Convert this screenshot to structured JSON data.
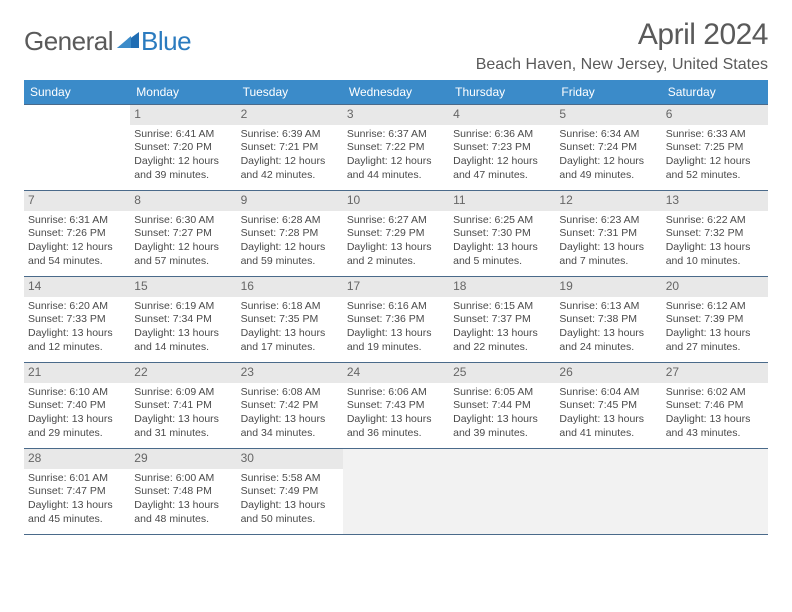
{
  "logo": {
    "text1": "General",
    "text2": "Blue"
  },
  "title": "April 2024",
  "location": "Beach Haven, New Jersey, United States",
  "colors": {
    "header_bg": "#3b8bc9",
    "header_text": "#ffffff",
    "daynum_bg": "#e8e8e8",
    "border": "#4a6a8a",
    "logo_gray": "#5a5a5a",
    "logo_blue": "#2b7bbf",
    "text": "#4a4a4a"
  },
  "weekdays": [
    "Sunday",
    "Monday",
    "Tuesday",
    "Wednesday",
    "Thursday",
    "Friday",
    "Saturday"
  ],
  "weeks": [
    [
      {
        "blank": true
      },
      {
        "day": "1",
        "sunrise": "6:41 AM",
        "sunset": "7:20 PM",
        "daylight": "12 hours and 39 minutes."
      },
      {
        "day": "2",
        "sunrise": "6:39 AM",
        "sunset": "7:21 PM",
        "daylight": "12 hours and 42 minutes."
      },
      {
        "day": "3",
        "sunrise": "6:37 AM",
        "sunset": "7:22 PM",
        "daylight": "12 hours and 44 minutes."
      },
      {
        "day": "4",
        "sunrise": "6:36 AM",
        "sunset": "7:23 PM",
        "daylight": "12 hours and 47 minutes."
      },
      {
        "day": "5",
        "sunrise": "6:34 AM",
        "sunset": "7:24 PM",
        "daylight": "12 hours and 49 minutes."
      },
      {
        "day": "6",
        "sunrise": "6:33 AM",
        "sunset": "7:25 PM",
        "daylight": "12 hours and 52 minutes."
      }
    ],
    [
      {
        "day": "7",
        "sunrise": "6:31 AM",
        "sunset": "7:26 PM",
        "daylight": "12 hours and 54 minutes."
      },
      {
        "day": "8",
        "sunrise": "6:30 AM",
        "sunset": "7:27 PM",
        "daylight": "12 hours and 57 minutes."
      },
      {
        "day": "9",
        "sunrise": "6:28 AM",
        "sunset": "7:28 PM",
        "daylight": "12 hours and 59 minutes."
      },
      {
        "day": "10",
        "sunrise": "6:27 AM",
        "sunset": "7:29 PM",
        "daylight": "13 hours and 2 minutes."
      },
      {
        "day": "11",
        "sunrise": "6:25 AM",
        "sunset": "7:30 PM",
        "daylight": "13 hours and 5 minutes."
      },
      {
        "day": "12",
        "sunrise": "6:23 AM",
        "sunset": "7:31 PM",
        "daylight": "13 hours and 7 minutes."
      },
      {
        "day": "13",
        "sunrise": "6:22 AM",
        "sunset": "7:32 PM",
        "daylight": "13 hours and 10 minutes."
      }
    ],
    [
      {
        "day": "14",
        "sunrise": "6:20 AM",
        "sunset": "7:33 PM",
        "daylight": "13 hours and 12 minutes."
      },
      {
        "day": "15",
        "sunrise": "6:19 AM",
        "sunset": "7:34 PM",
        "daylight": "13 hours and 14 minutes."
      },
      {
        "day": "16",
        "sunrise": "6:18 AM",
        "sunset": "7:35 PM",
        "daylight": "13 hours and 17 minutes."
      },
      {
        "day": "17",
        "sunrise": "6:16 AM",
        "sunset": "7:36 PM",
        "daylight": "13 hours and 19 minutes."
      },
      {
        "day": "18",
        "sunrise": "6:15 AM",
        "sunset": "7:37 PM",
        "daylight": "13 hours and 22 minutes."
      },
      {
        "day": "19",
        "sunrise": "6:13 AM",
        "sunset": "7:38 PM",
        "daylight": "13 hours and 24 minutes."
      },
      {
        "day": "20",
        "sunrise": "6:12 AM",
        "sunset": "7:39 PM",
        "daylight": "13 hours and 27 minutes."
      }
    ],
    [
      {
        "day": "21",
        "sunrise": "6:10 AM",
        "sunset": "7:40 PM",
        "daylight": "13 hours and 29 minutes."
      },
      {
        "day": "22",
        "sunrise": "6:09 AM",
        "sunset": "7:41 PM",
        "daylight": "13 hours and 31 minutes."
      },
      {
        "day": "23",
        "sunrise": "6:08 AM",
        "sunset": "7:42 PM",
        "daylight": "13 hours and 34 minutes."
      },
      {
        "day": "24",
        "sunrise": "6:06 AM",
        "sunset": "7:43 PM",
        "daylight": "13 hours and 36 minutes."
      },
      {
        "day": "25",
        "sunrise": "6:05 AM",
        "sunset": "7:44 PM",
        "daylight": "13 hours and 39 minutes."
      },
      {
        "day": "26",
        "sunrise": "6:04 AM",
        "sunset": "7:45 PM",
        "daylight": "13 hours and 41 minutes."
      },
      {
        "day": "27",
        "sunrise": "6:02 AM",
        "sunset": "7:46 PM",
        "daylight": "13 hours and 43 minutes."
      }
    ],
    [
      {
        "day": "28",
        "sunrise": "6:01 AM",
        "sunset": "7:47 PM",
        "daylight": "13 hours and 45 minutes."
      },
      {
        "day": "29",
        "sunrise": "6:00 AM",
        "sunset": "7:48 PM",
        "daylight": "13 hours and 48 minutes."
      },
      {
        "day": "30",
        "sunrise": "5:58 AM",
        "sunset": "7:49 PM",
        "daylight": "13 hours and 50 minutes."
      },
      {
        "trailing": true
      },
      {
        "trailing": true
      },
      {
        "trailing": true
      },
      {
        "trailing": true
      }
    ]
  ],
  "labels": {
    "sunrise": "Sunrise:",
    "sunset": "Sunset:",
    "daylight": "Daylight:"
  }
}
